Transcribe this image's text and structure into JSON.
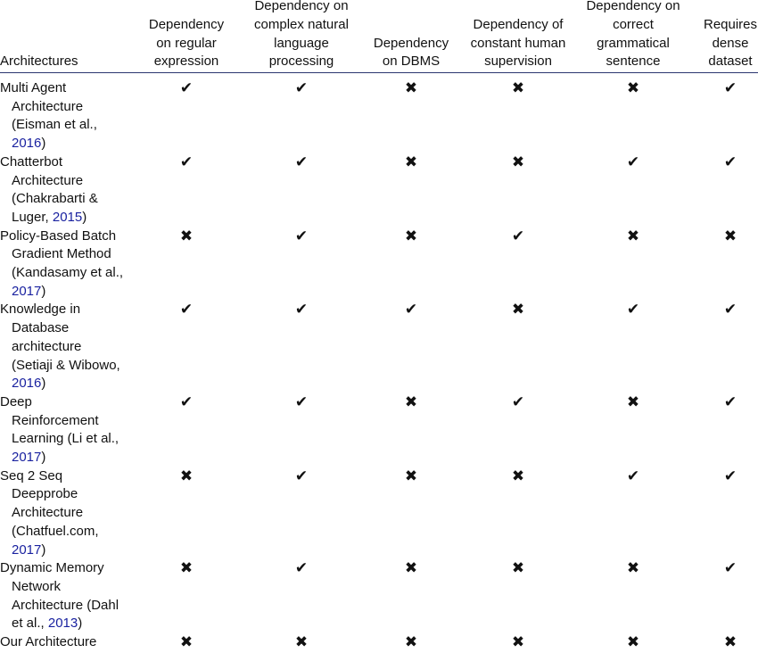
{
  "table": {
    "headers": [
      "Architectures",
      "Dependency\non regular\nexpression",
      "Dependency on\ncomplex natural\nlanguage\nprocessing",
      "Dependency\non DBMS",
      "Dependency of\nconstant human\nsupervision",
      "Dependency on\ncorrect\ngrammatical\nsentence",
      "Requires\ndense\ndataset"
    ],
    "rows": [
      {
        "lines": [
          "Multi Agent",
          "Architecture",
          "(Eisman et al.,"
        ],
        "cite": {
          "year": "2016",
          "after": ")"
        },
        "cells": [
          "✔",
          "✔",
          "✖",
          "✖",
          "✖",
          "✔"
        ]
      },
      {
        "lines": [
          "Chatterbot",
          "Architecture",
          "(Chakrabarti &"
        ],
        "cite": {
          "before": "Luger, ",
          "year": "2015",
          "after": ")"
        },
        "cells": [
          "✔",
          "✔",
          "✖",
          "✖",
          "✔",
          "✔"
        ]
      },
      {
        "lines": [
          "Policy-Based Batch",
          "Gradient Method",
          "(Kandasamy et al.,"
        ],
        "cite": {
          "year": "2017",
          "after": ")"
        },
        "cells": [
          "✖",
          "✔",
          "✖",
          "✔",
          "✖",
          "✖"
        ]
      },
      {
        "lines": [
          "Knowledge in",
          "Database",
          "architecture",
          "(Setiaji & Wibowo,"
        ],
        "cite": {
          "year": "2016",
          "after": ")"
        },
        "cells": [
          "✔",
          "✔",
          "✔",
          "✖",
          "✔",
          "✔"
        ]
      },
      {
        "lines": [
          "Deep",
          "Reinforcement",
          "Learning (Li et al.,"
        ],
        "cite": {
          "year": "2017",
          "after": ")"
        },
        "cells": [
          "✔",
          "✔",
          "✖",
          "✔",
          "✖",
          "✔"
        ]
      },
      {
        "lines": [
          "Seq 2 Seq",
          "Deepprobe",
          "Architecture",
          "(Chatfuel.com,"
        ],
        "cite": {
          "year": "2017",
          "after": ")"
        },
        "cells": [
          "✖",
          "✔",
          "✖",
          "✖",
          "✔",
          "✔"
        ]
      },
      {
        "lines": [
          "Dynamic Memory",
          "Network",
          "Architecture (Dahl"
        ],
        "cite": {
          "before": "et al., ",
          "year": "2013",
          "after": ")"
        },
        "cells": [
          "✖",
          "✔",
          "✖",
          "✖",
          "✖",
          "✔"
        ]
      },
      {
        "lines": [
          "Our Architecture"
        ],
        "cells": [
          "✖",
          "✖",
          "✖",
          "✖",
          "✖",
          "✖"
        ]
      }
    ]
  }
}
